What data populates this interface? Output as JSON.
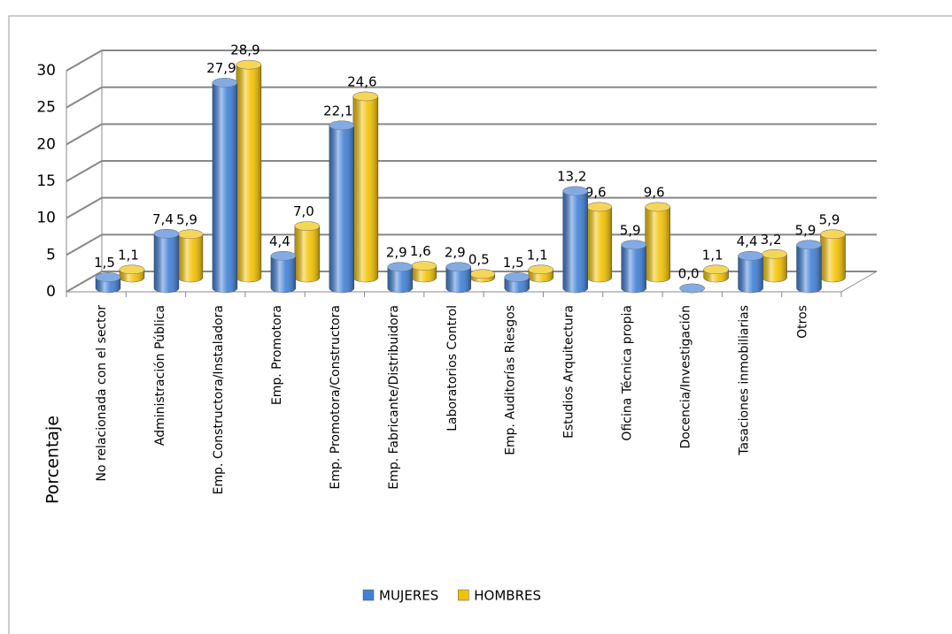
{
  "chart_data": {
    "type": "bar3d",
    "y_label": "Porcentaje",
    "categories": [
      "No relacionada con el sector",
      "Administración Pública",
      "Emp. Constructora/Instaladora",
      "Emp. Promotora",
      "Emp. Promotora/Constructora",
      "Emp. Fabricante/Distribuidora",
      "Laboratorios Control",
      "Emp. Auditorías Riesgos",
      "Estudios Arquitectura",
      "Oficina Técnica propia",
      "Docencia/Investigación",
      "Tasaciones inmobiliarias",
      "Otros"
    ],
    "series": [
      {
        "name": "MUJERES",
        "color": "#3f7fd6",
        "values": [
          1.5,
          7.4,
          27.9,
          4.4,
          22.1,
          2.9,
          2.9,
          1.5,
          13.2,
          5.9,
          0.0,
          4.4,
          5.9
        ],
        "value_labels": [
          "1,5",
          "7,4",
          "27,9",
          "4,4",
          "22,1",
          "2,9",
          "2,9",
          "1,5",
          "13,2",
          "5,9",
          "0,0",
          "4,4",
          "5,9"
        ]
      },
      {
        "name": "HOMBRES",
        "color": "#f2c100",
        "values": [
          1.1,
          5.9,
          28.9,
          7.0,
          24.6,
          1.6,
          0.5,
          1.1,
          9.6,
          9.6,
          1.1,
          3.2,
          5.9
        ],
        "value_labels": [
          "1,1",
          "5,9",
          "28,9",
          "7,0",
          "24,6",
          "1,6",
          "0,5",
          "1,1",
          "9,6",
          "9,6",
          "1,1",
          "3,2",
          "5,9"
        ]
      }
    ],
    "ylim": [
      0,
      30
    ],
    "yticks": [
      0,
      5,
      10,
      15,
      20,
      25,
      30
    ],
    "grid": true,
    "legend": "bottom"
  }
}
